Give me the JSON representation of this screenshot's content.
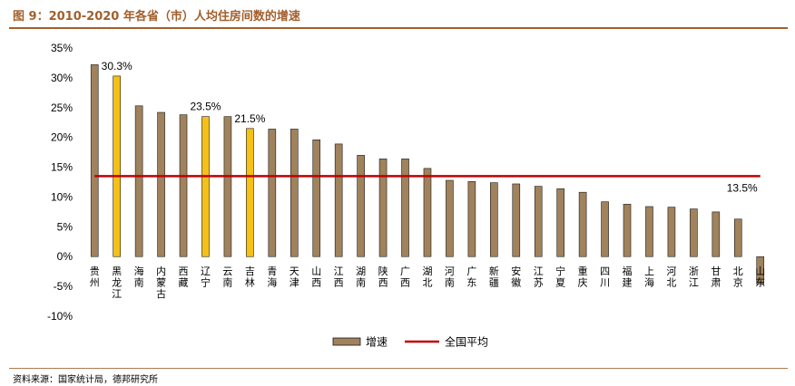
{
  "title": "图 9：2010-2020 年各省（市）人均住房间数的增速",
  "source": "资料来源：国家统计局，德邦研究所",
  "colors": {
    "bar": "#a0825c",
    "bar_highlight": "#f5c017",
    "bar_stroke": "#1a1a1a",
    "average_line": "#c00000",
    "title": "#a25f2c"
  },
  "chart_data": {
    "type": "bar",
    "categories": [
      "贵州",
      "黑龙江",
      "海南",
      "内蒙古",
      "西藏",
      "辽宁",
      "云南",
      "吉林",
      "青海",
      "天津",
      "山西",
      "江西",
      "湖南",
      "陕西",
      "广西",
      "湖北",
      "河南",
      "广东",
      "新疆",
      "安徽",
      "江苏",
      "宁夏",
      "重庆",
      "四川",
      "福建",
      "上海",
      "河北",
      "浙江",
      "甘肃",
      "北京",
      "山东"
    ],
    "series": [
      {
        "name": "增速",
        "values": [
          32.2,
          30.3,
          25.3,
          24.2,
          23.8,
          23.5,
          23.5,
          21.5,
          21.4,
          21.4,
          19.6,
          18.9,
          17.0,
          16.4,
          16.4,
          14.8,
          12.8,
          12.6,
          12.4,
          12.2,
          11.8,
          11.4,
          10.8,
          9.2,
          8.8,
          8.4,
          8.3,
          8.0,
          7.5,
          6.3,
          -4.6
        ],
        "highlighted_categories": [
          "黑龙江",
          "辽宁",
          "吉林"
        ]
      },
      {
        "name": "全国平均",
        "value": 13.5
      }
    ],
    "data_labels": [
      {
        "category": "黑龙江",
        "text": "30.3%"
      },
      {
        "category": "辽宁",
        "text": "23.5%"
      },
      {
        "category": "吉林",
        "text": "21.5%"
      },
      {
        "category": "山东",
        "text": "13.5%"
      }
    ],
    "y_ticks": [
      "35%",
      "30%",
      "25%",
      "20%",
      "15%",
      "10%",
      "5%",
      "0%",
      "-5%",
      "-10%"
    ],
    "ylim": [
      -10,
      35
    ],
    "xlabel": "",
    "ylabel": "",
    "grid": false,
    "legend": "bottom"
  }
}
